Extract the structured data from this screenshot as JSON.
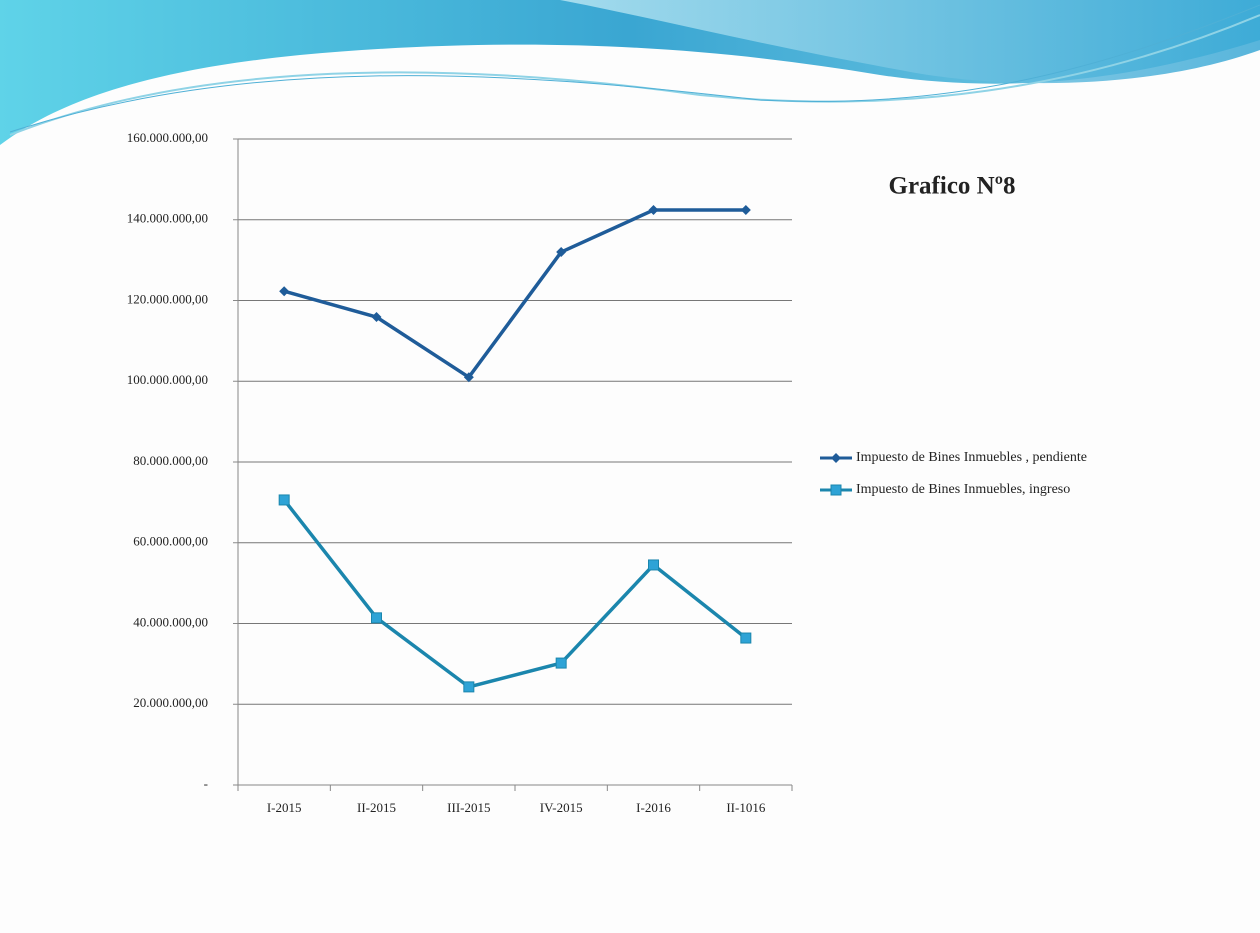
{
  "chart_data": {
    "type": "line",
    "title": "Grafico Nº8",
    "categories": [
      "I-2015",
      "II-2015",
      "III-2015",
      "IV-2015",
      "I-2016",
      "II-1016"
    ],
    "series": [
      {
        "name": "Impuesto de Bines Inmuebles , pendiente",
        "color": "#1f5c99",
        "marker": "diamond",
        "values": [
          122300000,
          115900000,
          101000000,
          132000000,
          142400000,
          142400000
        ]
      },
      {
        "name": "Impuesto de Bines Inmuebles, ingreso",
        "color": "#1b86ad",
        "marker": "square",
        "values": [
          70600000,
          41400000,
          24300000,
          30200000,
          54500000,
          36400000
        ]
      }
    ],
    "ylim": [
      0,
      160000000
    ],
    "yticks": [
      {
        "value": 0,
        "label": "-"
      },
      {
        "value": 20000000,
        "label": "20.000.000,00"
      },
      {
        "value": 40000000,
        "label": "40.000.000,00"
      },
      {
        "value": 60000000,
        "label": "60.000.000,00"
      },
      {
        "value": 80000000,
        "label": "80.000.000,00"
      },
      {
        "value": 100000000,
        "label": "100.000.000,00"
      },
      {
        "value": 120000000,
        "label": "120.000.000,00"
      },
      {
        "value": 140000000,
        "label": "140.000.000,00"
      },
      {
        "value": 160000000,
        "label": "160.000.000,00"
      }
    ],
    "grid": true,
    "legend": "right"
  }
}
